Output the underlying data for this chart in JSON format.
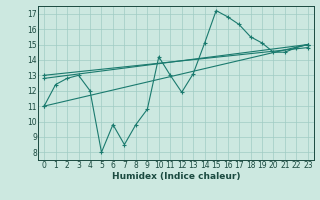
{
  "xlabel": "Humidex (Indice chaleur)",
  "ylabel": "",
  "bg_color": "#cce8e0",
  "grid_color": "#a0ccc4",
  "line_color": "#1a7a6e",
  "xlim": [
    -0.5,
    23.5
  ],
  "ylim": [
    7.5,
    17.5
  ],
  "xticks": [
    0,
    1,
    2,
    3,
    4,
    5,
    6,
    7,
    8,
    9,
    10,
    11,
    12,
    13,
    14,
    15,
    16,
    17,
    18,
    19,
    20,
    21,
    22,
    23
  ],
  "yticks": [
    8,
    9,
    10,
    11,
    12,
    13,
    14,
    15,
    16,
    17
  ],
  "lines": [
    {
      "x": [
        0,
        1,
        2,
        3,
        4,
        5,
        6,
        7,
        8,
        9,
        10,
        11,
        12,
        13,
        14,
        15,
        16,
        17,
        18,
        19,
        20,
        21,
        22,
        23
      ],
      "y": [
        11,
        12.4,
        12.8,
        13,
        12,
        8,
        9.8,
        8.5,
        9.8,
        10.8,
        14.2,
        13,
        11.9,
        13.1,
        15.1,
        17.2,
        16.8,
        16.3,
        15.5,
        15.1,
        14.5,
        14.5,
        14.8,
        15
      ]
    },
    {
      "x": [
        0,
        23
      ],
      "y": [
        11.0,
        15.0
      ]
    },
    {
      "x": [
        0,
        23
      ],
      "y": [
        12.8,
        15.0
      ]
    },
    {
      "x": [
        0,
        23
      ],
      "y": [
        13.0,
        14.8
      ]
    }
  ]
}
